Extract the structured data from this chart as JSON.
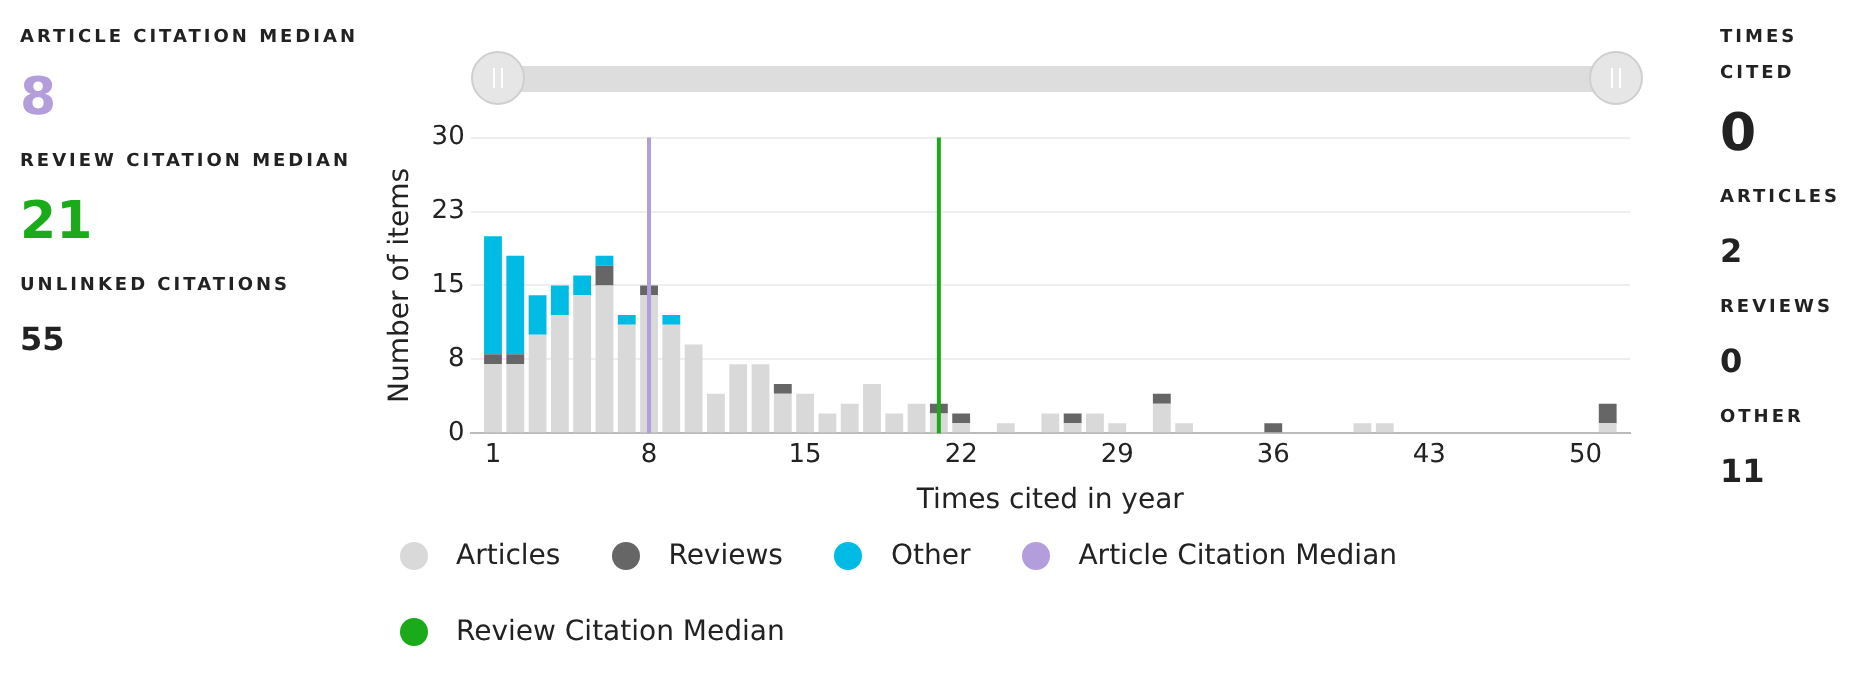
{
  "chart_data": {
    "type": "bar",
    "stacked": true,
    "xlabel": "Times cited in year",
    "ylabel": "Number of items",
    "x": [
      1,
      2,
      3,
      4,
      5,
      6,
      7,
      8,
      9,
      10,
      11,
      12,
      13,
      14,
      15,
      16,
      17,
      18,
      19,
      20,
      21,
      22,
      23,
      24,
      25,
      26,
      27,
      28,
      29,
      30,
      31,
      32,
      33,
      34,
      35,
      36,
      37,
      38,
      39,
      40,
      41,
      42,
      43,
      44,
      45,
      46,
      47,
      48,
      49,
      50,
      51
    ],
    "xlim": [
      0,
      52
    ],
    "xticks": [
      1,
      8,
      15,
      22,
      29,
      36,
      43,
      50
    ],
    "ylim": [
      0,
      30
    ],
    "yticks": [
      0,
      {
        "value": 7.5,
        "label": "8"
      },
      15,
      {
        "value": 22.5,
        "label": "23"
      },
      30
    ],
    "grid": "y",
    "legend": "bottom",
    "series": [
      {
        "name": "Articles",
        "color": "#d9d9d9",
        "values": [
          7,
          7,
          10,
          12,
          14,
          15,
          11,
          14,
          11,
          9,
          4,
          7,
          7,
          4,
          4,
          2,
          3,
          5,
          2,
          3,
          2,
          1,
          null,
          1,
          null,
          2,
          1,
          2,
          1,
          null,
          3,
          1,
          null,
          null,
          null,
          null,
          null,
          null,
          null,
          1,
          1,
          null,
          null,
          null,
          null,
          null,
          null,
          null,
          null,
          null,
          1
        ]
      },
      {
        "name": "Reviews",
        "color": "#666666",
        "values": [
          1,
          1,
          null,
          null,
          null,
          2,
          null,
          1,
          null,
          null,
          null,
          null,
          null,
          1,
          null,
          null,
          null,
          null,
          null,
          null,
          1,
          1,
          null,
          null,
          null,
          null,
          1,
          null,
          null,
          null,
          1,
          null,
          null,
          null,
          null,
          1,
          null,
          null,
          null,
          null,
          null,
          null,
          null,
          null,
          null,
          null,
          null,
          null,
          null,
          null,
          2
        ]
      },
      {
        "name": "Other",
        "color": "#00bce4",
        "values": [
          12,
          10,
          4,
          3,
          2,
          1,
          1,
          null,
          1,
          null,
          null,
          null,
          null,
          null,
          null,
          null,
          null,
          null,
          null,
          null,
          null,
          null,
          null,
          null,
          null,
          null,
          null,
          null,
          null,
          null,
          null,
          null,
          null,
          null,
          null,
          null,
          null,
          null,
          null,
          null,
          null,
          null,
          null,
          null,
          null,
          null,
          null,
          null,
          null,
          null,
          null
        ]
      }
    ],
    "ref_lines": [
      {
        "axis": "x",
        "value": 8,
        "label": "Article Citation Median",
        "color": "#b39ddb"
      },
      {
        "axis": "x",
        "value": 21,
        "label": "Review Citation Median",
        "color": "#1aaa1a"
      }
    ],
    "annotations": [
      "ARTICLE CITATION MEDIAN",
      "8",
      "REVIEW CITATION MEDIAN",
      "21",
      "UNLINKED CITATIONS",
      "55",
      "TIMES CITED",
      "0",
      "ARTICLES",
      "2",
      "REVIEWS",
      "0",
      "OTHER",
      "11"
    ]
  }
}
